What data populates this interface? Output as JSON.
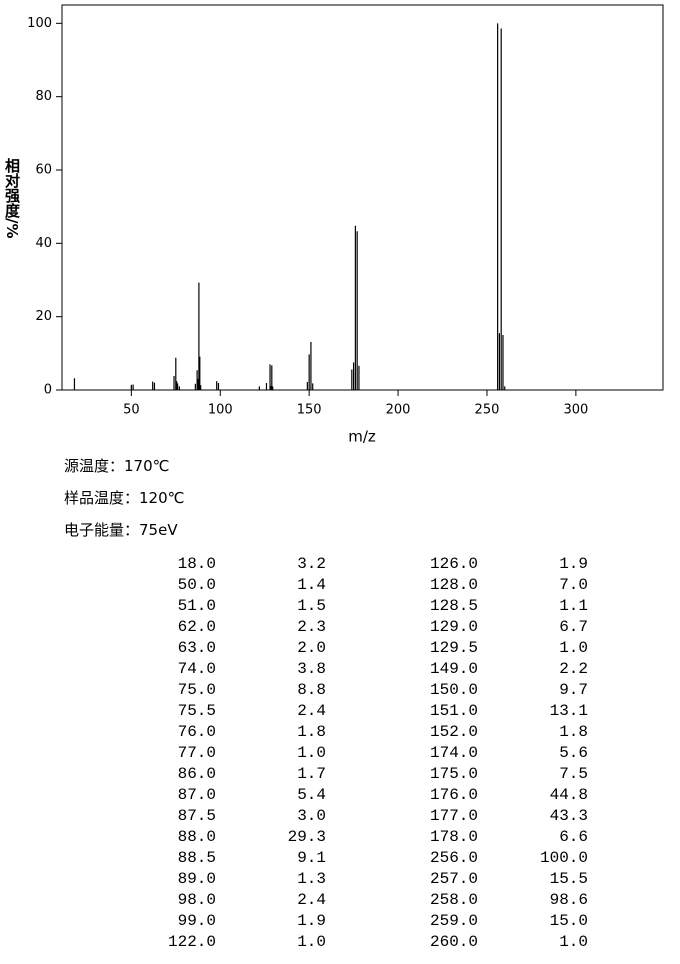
{
  "chart_data": {
    "type": "bar",
    "x_label": "m/z",
    "y_label": "相对强度/%",
    "x": [
      18,
      50,
      51,
      62,
      63,
      74,
      75,
      75.5,
      76,
      77,
      86,
      87,
      87.5,
      88,
      88.5,
      89,
      98,
      99,
      122,
      126,
      128,
      128.5,
      129,
      129.5,
      149,
      150,
      151,
      152,
      174,
      175,
      176,
      177,
      178,
      256,
      257,
      258,
      259,
      260
    ],
    "x_labels": [
      "18.0",
      "50.0",
      "51.0",
      "62.0",
      "63.0",
      "74.0",
      "75.0",
      "75.5",
      "76.0",
      "77.0",
      "86.0",
      "87.0",
      "87.5",
      "88.0",
      "88.5",
      "89.0",
      "98.0",
      "99.0",
      "122.0",
      "126.0",
      "128.0",
      "128.5",
      "129.0",
      "129.5",
      "149.0",
      "150.0",
      "151.0",
      "152.0",
      "174.0",
      "175.0",
      "176.0",
      "177.0",
      "178.0",
      "256.0",
      "257.0",
      "258.0",
      "259.0",
      "260.0"
    ],
    "values": [
      3.2,
      1.4,
      1.5,
      2.3,
      2.0,
      3.8,
      8.8,
      2.4,
      1.8,
      1.0,
      1.7,
      5.4,
      3.0,
      29.3,
      9.1,
      1.3,
      2.4,
      1.9,
      1.0,
      1.9,
      7.0,
      1.1,
      6.7,
      1.0,
      2.2,
      9.7,
      13.1,
      1.8,
      5.6,
      7.5,
      44.8,
      43.3,
      6.6,
      100,
      15.5,
      98.6,
      15.0,
      1.0
    ],
    "value_labels": [
      "3.2",
      "1.4",
      "1.5",
      "2.3",
      "2.0",
      "3.8",
      "8.8",
      "2.4",
      "1.8",
      "1.0",
      "1.7",
      "5.4",
      "3.0",
      "29.3",
      "9.1",
      "1.3",
      "2.4",
      "1.9",
      "1.0",
      "1.9",
      "7.0",
      "1.1",
      "6.7",
      "1.0",
      "2.2",
      "9.7",
      "13.1",
      "1.8",
      "5.6",
      "7.5",
      "44.8",
      "43.3",
      "6.6",
      "100.0",
      "15.5",
      "98.6",
      "15.0",
      "1.0"
    ],
    "color": "#000000",
    "xlim": [
      11,
      349
    ],
    "xticks": [
      50,
      100,
      150,
      200,
      250,
      300
    ],
    "ylim": [
      0,
      105
    ],
    "yticks": [
      0,
      20,
      40,
      60,
      80,
      100
    ]
  },
  "conditions": [
    "源温度：170℃",
    "样品温度：120℃",
    "电子能量：75eV"
  ]
}
